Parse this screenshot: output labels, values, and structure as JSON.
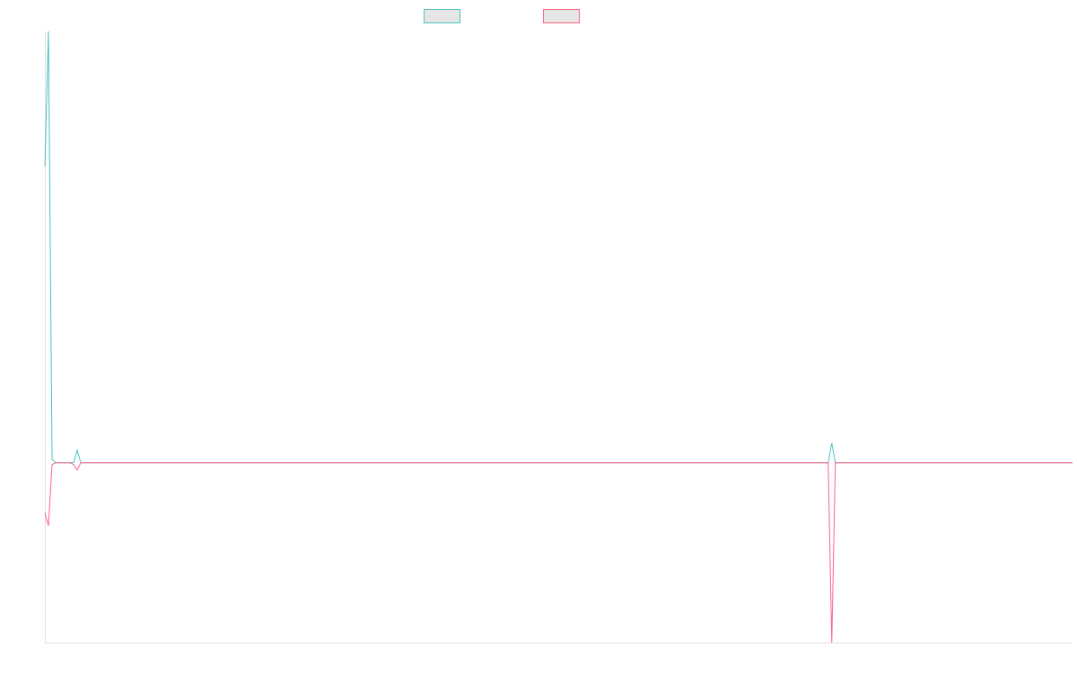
{
  "chart_data": {
    "type": "line",
    "title": "",
    "xlabel": "",
    "ylabel": "",
    "grid": false,
    "legend": "top-center",
    "xlim": [
      0,
      286
    ],
    "ylim": [
      -10,
      24
    ],
    "series": [
      {
        "color": "#4bc0c0",
        "legend_fill": "#e6e6e6",
        "points": [
          [
            0,
            16.5
          ],
          [
            1,
            24
          ],
          [
            2,
            0.2
          ],
          [
            3,
            0
          ],
          [
            4,
            0
          ],
          [
            5,
            0
          ],
          [
            6,
            0
          ],
          [
            7,
            0
          ],
          [
            8,
            0
          ],
          [
            9,
            0.7
          ],
          [
            10,
            0
          ],
          [
            11,
            0
          ],
          [
            12,
            0
          ],
          [
            60,
            0
          ],
          [
            120,
            0
          ],
          [
            180,
            0
          ],
          [
            218,
            0
          ],
          [
            219,
            1.1
          ],
          [
            220,
            0
          ],
          [
            221,
            0
          ],
          [
            250,
            0
          ],
          [
            286,
            0
          ]
        ]
      },
      {
        "color": "#ff6384",
        "legend_fill": "#e6e6e6",
        "points": [
          [
            0,
            -2.8
          ],
          [
            1,
            -3.5
          ],
          [
            2,
            -0.1
          ],
          [
            3,
            0
          ],
          [
            4,
            0
          ],
          [
            5,
            0
          ],
          [
            6,
            0
          ],
          [
            7,
            0
          ],
          [
            8,
            -0.1
          ],
          [
            9,
            -0.4
          ],
          [
            10,
            0
          ],
          [
            11,
            0
          ],
          [
            12,
            0
          ],
          [
            60,
            0
          ],
          [
            120,
            0
          ],
          [
            180,
            0
          ],
          [
            218,
            0
          ],
          [
            219,
            -10
          ],
          [
            220,
            0
          ],
          [
            221,
            0
          ],
          [
            250,
            0
          ],
          [
            286,
            0
          ]
        ]
      }
    ]
  }
}
